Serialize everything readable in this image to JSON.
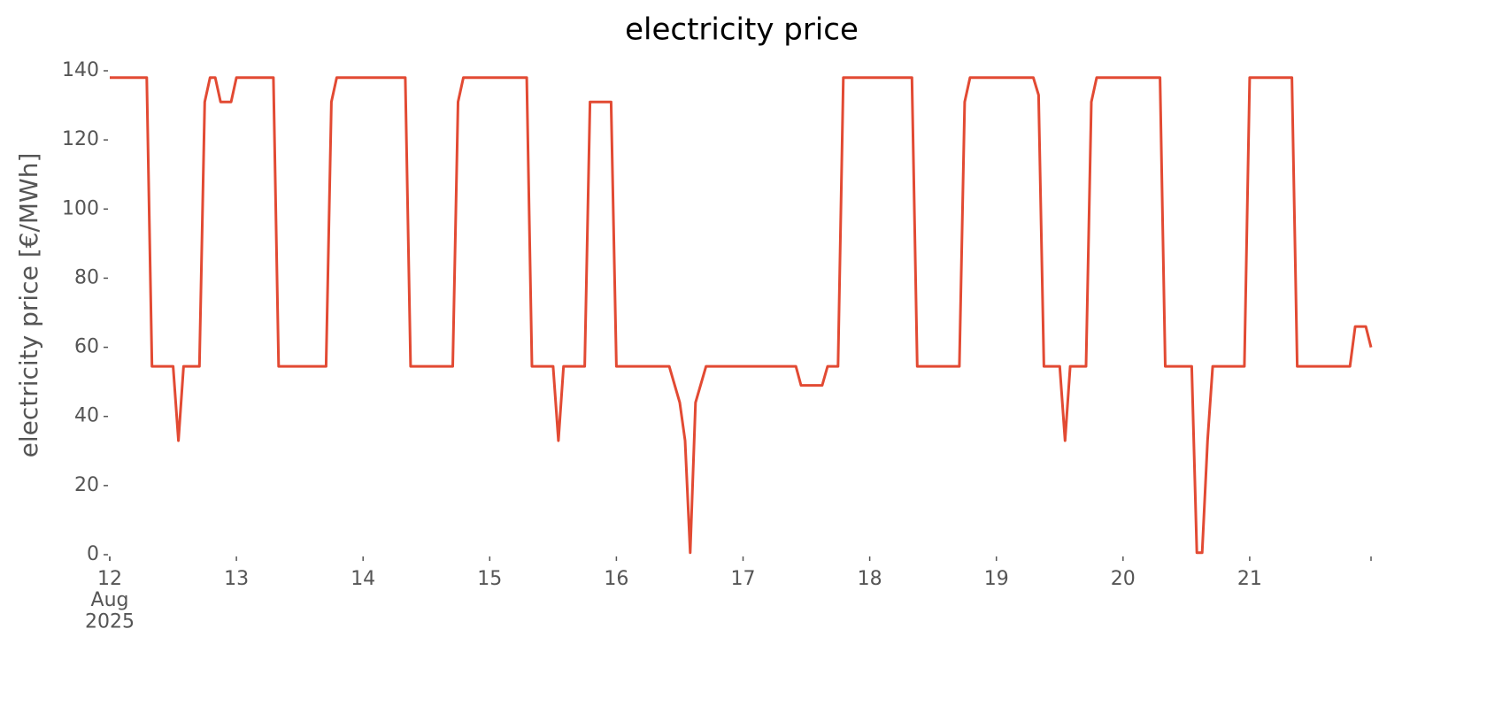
{
  "chart_data": {
    "type": "line",
    "title": "electricity price",
    "ylabel": "electricity price [€/MWh]",
    "x": [
      12.0,
      12.292,
      12.333,
      12.5,
      12.542,
      12.583,
      12.708,
      12.75,
      12.792,
      12.833,
      12.875,
      12.958,
      13.0,
      13.292,
      13.333,
      13.708,
      13.75,
      13.792,
      14.333,
      14.375,
      14.708,
      14.75,
      14.792,
      15.292,
      15.333,
      15.5,
      15.542,
      15.583,
      15.75,
      15.792,
      15.958,
      16.0,
      16.417,
      16.5,
      16.542,
      16.583,
      16.625,
      16.708,
      17.417,
      17.458,
      17.625,
      17.667,
      17.75,
      17.792,
      18.333,
      18.375,
      18.708,
      18.75,
      18.792,
      19.292,
      19.333,
      19.375,
      19.5,
      19.542,
      19.583,
      19.708,
      19.75,
      19.792,
      20.292,
      20.333,
      20.542,
      20.583,
      20.625,
      20.667,
      20.708,
      20.958,
      21.0,
      21.333,
      21.375,
      21.792,
      21.833,
      21.917,
      21.958
    ],
    "series": [
      {
        "name": "electricity price",
        "color": "#e24a33",
        "values": [
          138,
          138,
          54.5,
          54.5,
          33,
          54.5,
          54.5,
          131,
          138,
          138,
          131,
          131,
          138,
          138,
          54.5,
          54.5,
          131,
          138,
          138,
          54.5,
          54.5,
          131,
          138,
          138,
          54.5,
          54.5,
          33,
          54.5,
          54.5,
          131,
          131,
          54.5,
          54.5,
          44,
          33,
          0.6,
          44,
          54.5,
          54.5,
          49,
          49,
          54.5,
          54.5,
          138,
          138,
          54.5,
          54.5,
          131,
          138,
          138,
          133,
          54.5,
          54.5,
          33,
          54.5,
          54.5,
          131,
          138,
          138,
          54.5,
          54.5,
          0.6,
          0.6,
          33,
          54.5,
          54.5,
          138,
          138,
          54.5,
          54.5,
          66,
          66,
          60
        ]
      }
    ],
    "xlim": [
      12,
      21.958
    ],
    "xticks": [
      {
        "value": 12,
        "label": "12\nAug\n2025"
      },
      13,
      14,
      15,
      16,
      17,
      18,
      19,
      20,
      21
    ],
    "ylim": [
      0,
      140
    ],
    "yticks": [
      0,
      20,
      40,
      60,
      80,
      100,
      120,
      140
    ],
    "grid": false
  }
}
